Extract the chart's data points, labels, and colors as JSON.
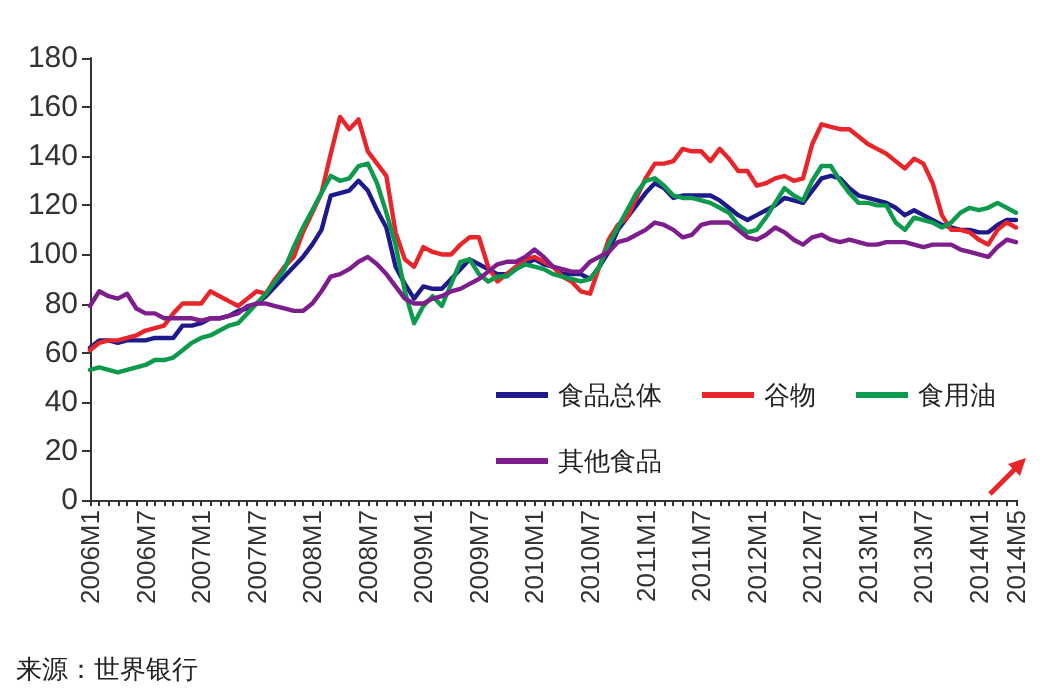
{
  "chart_data": {
    "type": "line",
    "categories": [
      "2006M1",
      null,
      null,
      null,
      null,
      null,
      "2006M7",
      null,
      null,
      null,
      null,
      null,
      "2007M1",
      null,
      null,
      null,
      null,
      null,
      "2007M7",
      null,
      null,
      null,
      null,
      null,
      "2008M1",
      null,
      null,
      null,
      null,
      null,
      "2008M7",
      null,
      null,
      null,
      null,
      null,
      "2009M1",
      null,
      null,
      null,
      null,
      null,
      "2009M7",
      null,
      null,
      null,
      null,
      null,
      "2010M1",
      null,
      null,
      null,
      null,
      null,
      "2010M7",
      null,
      null,
      null,
      null,
      null,
      "2011M1",
      null,
      null,
      null,
      null,
      null,
      "2011M7",
      null,
      null,
      null,
      null,
      null,
      "2012M1",
      null,
      null,
      null,
      null,
      null,
      "2012M7",
      null,
      null,
      null,
      null,
      null,
      "2013M1",
      null,
      null,
      null,
      null,
      null,
      "2013M7",
      null,
      null,
      null,
      null,
      null,
      "2014M1",
      null,
      null,
      null,
      "2014M5"
    ],
    "series": [
      {
        "name": "食品总体",
        "color": "#1f1a8c",
        "values": [
          62,
          65,
          65,
          64,
          65,
          65,
          65,
          66,
          66,
          66,
          71,
          71,
          72,
          74,
          74,
          75,
          77,
          78,
          80,
          83,
          87,
          91,
          95,
          99,
          104,
          110,
          124,
          125,
          126,
          130,
          126,
          118,
          111,
          95,
          88,
          82,
          87,
          86,
          86,
          90,
          94,
          98,
          96,
          94,
          92,
          92,
          94,
          96,
          98,
          96,
          95,
          92,
          92,
          92,
          90,
          95,
          101,
          110,
          115,
          120,
          125,
          129,
          127,
          123,
          124,
          124,
          124,
          124,
          122,
          119,
          116,
          114,
          116,
          118,
          120,
          123,
          122,
          121,
          126,
          131,
          132,
          131,
          127,
          124,
          123,
          122,
          121,
          119,
          116,
          118,
          116,
          114,
          112,
          111,
          110,
          110,
          109,
          109,
          112,
          114,
          114
        ]
      },
      {
        "name": "谷物",
        "color": "#e8262a",
        "values": [
          61,
          64,
          65,
          65,
          66,
          67,
          69,
          70,
          71,
          76,
          80,
          80,
          80,
          85,
          83,
          81,
          79,
          82,
          85,
          84,
          90,
          95,
          99,
          109,
          117,
          125,
          141,
          156,
          151,
          155,
          142,
          137,
          132,
          109,
          98,
          95,
          103,
          101,
          100,
          100,
          104,
          107,
          107,
          95,
          89,
          92,
          95,
          98,
          99,
          97,
          95,
          91,
          89,
          85,
          84,
          95,
          106,
          112,
          115,
          123,
          131,
          137,
          137,
          138,
          143,
          142,
          142,
          138,
          143,
          139,
          134,
          134,
          128,
          129,
          131,
          132,
          130,
          131,
          145,
          153,
          152,
          151,
          151,
          148,
          145,
          143,
          141,
          138,
          135,
          139,
          137,
          129,
          116,
          110,
          110,
          109,
          106,
          104,
          110,
          113,
          111
        ]
      },
      {
        "name": "食用油",
        "color": "#0d9a4c",
        "values": [
          53,
          54,
          53,
          52,
          53,
          54,
          55,
          57,
          57,
          58,
          61,
          64,
          66,
          67,
          69,
          71,
          72,
          76,
          80,
          84,
          89,
          94,
          103,
          111,
          118,
          125,
          132,
          130,
          131,
          136,
          137,
          129,
          117,
          104,
          85,
          72,
          79,
          83,
          79,
          88,
          97,
          98,
          92,
          89,
          91,
          91,
          94,
          96,
          95,
          94,
          92,
          91,
          90,
          89,
          90,
          95,
          104,
          111,
          118,
          125,
          130,
          131,
          128,
          124,
          123,
          123,
          122,
          121,
          119,
          117,
          112,
          109,
          110,
          115,
          121,
          127,
          124,
          122,
          130,
          136,
          136,
          130,
          125,
          121,
          121,
          120,
          120,
          113,
          110,
          115,
          114,
          113,
          111,
          113,
          117,
          119,
          118,
          119,
          121,
          119,
          117
        ]
      },
      {
        "name": "其他食品",
        "color": "#7d1e8c",
        "values": [
          79,
          85,
          83,
          82,
          84,
          78,
          76,
          76,
          74,
          74,
          74,
          74,
          73,
          74,
          74,
          75,
          76,
          79,
          80,
          80,
          79,
          78,
          77,
          77,
          80,
          85,
          91,
          92,
          94,
          97,
          99,
          96,
          92,
          87,
          82,
          80,
          80,
          82,
          83,
          85,
          86,
          88,
          90,
          93,
          96,
          97,
          97,
          99,
          102,
          99,
          95,
          94,
          93,
          93,
          97,
          99,
          101,
          105,
          106,
          108,
          110,
          113,
          112,
          110,
          107,
          108,
          112,
          113,
          113,
          113,
          110,
          107,
          106,
          108,
          111,
          109,
          106,
          104,
          107,
          108,
          106,
          105,
          106,
          105,
          104,
          104,
          105,
          105,
          105,
          104,
          103,
          104,
          104,
          104,
          102,
          101,
          100,
          99,
          103,
          106,
          105
        ]
      }
    ],
    "ylim": [
      0,
      180
    ],
    "yticks": [
      0,
      20,
      40,
      60,
      80,
      100,
      120,
      140,
      160,
      180
    ],
    "grid": false,
    "legend": "bottom right",
    "marker": "none",
    "line_style": "solid",
    "annotations": [
      "来源：世界银行"
    ]
  }
}
